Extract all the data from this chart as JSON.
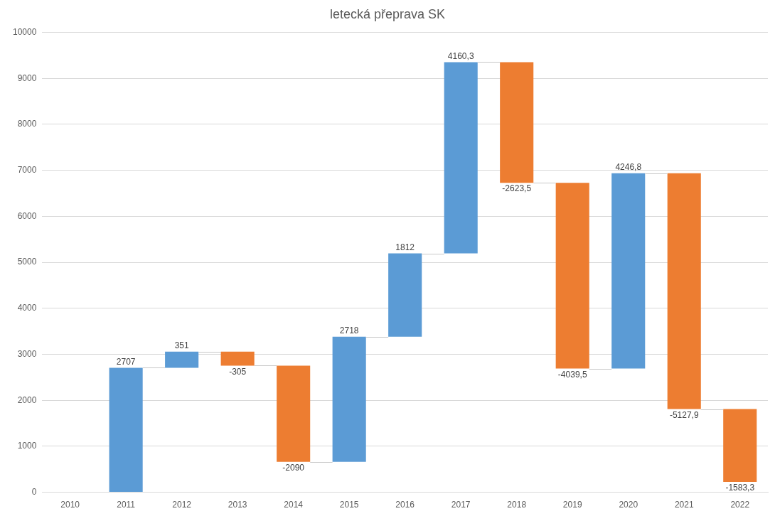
{
  "chart_data": {
    "type": "bar",
    "title": "letecká přeprava SK",
    "categories": [
      "2010",
      "2011",
      "2012",
      "2013",
      "2014",
      "2015",
      "2016",
      "2017",
      "2018",
      "2019",
      "2020",
      "2021",
      "2022"
    ],
    "values": [
      null,
      2707,
      351,
      -305,
      -2090,
      2718,
      1812,
      4160.3,
      -2623.5,
      -4039.5,
      4246.8,
      -5127.9,
      -1583.3
    ],
    "base": [
      null,
      0,
      2707,
      3058,
      2753,
      663,
      3381,
      5193,
      9353.3,
      6729.8,
      2690.3,
      6937.1,
      1809.2
    ],
    "colors": [
      null,
      "#5b9bd5",
      "#5b9bd5",
      "#ed7d31",
      "#ed7d31",
      "#5b9bd5",
      "#5b9bd5",
      "#5b9bd5",
      "#ed7d31",
      "#ed7d31",
      "#5b9bd5",
      "#ed7d31",
      "#ed7d31"
    ],
    "value_labels": [
      null,
      "2707",
      "351",
      "-305",
      "-2090",
      "2718",
      "1812",
      "4160,3",
      "-2623,5",
      "-4039,5",
      "4246,8",
      "-5127,9",
      "-1583,3"
    ],
    "ylim": [
      0,
      10000
    ],
    "yticks": [
      0,
      1000,
      2000,
      3000,
      4000,
      5000,
      6000,
      7000,
      8000,
      9000,
      10000
    ],
    "grid": "y",
    "legend": false
  }
}
